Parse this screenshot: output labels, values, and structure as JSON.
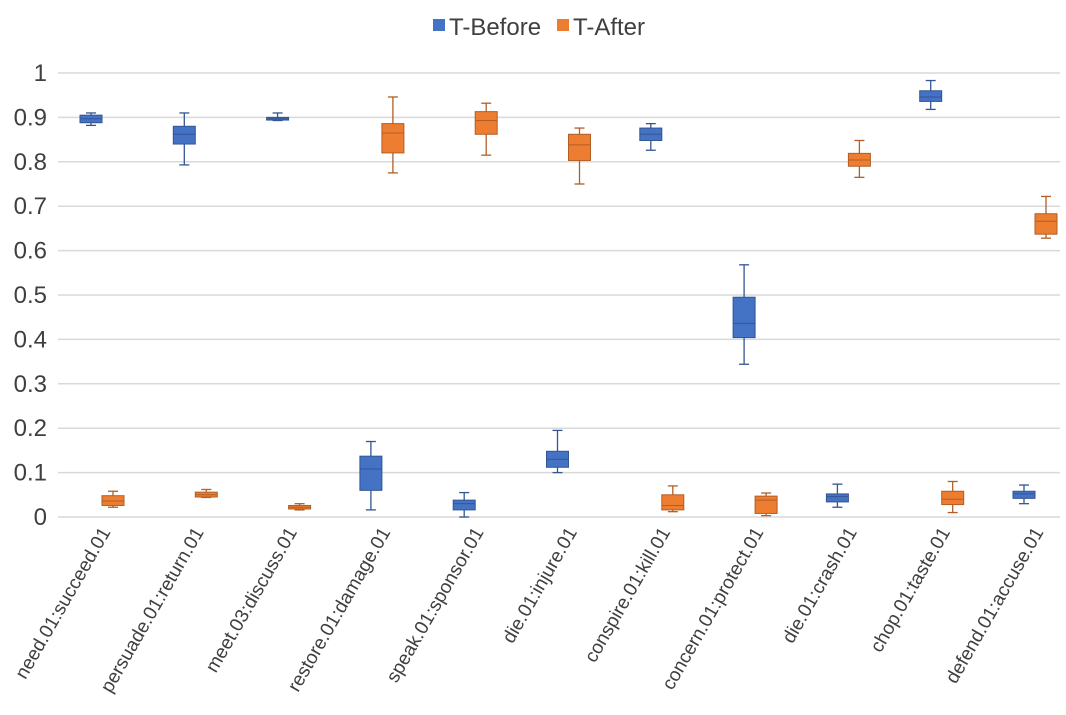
{
  "chart_data": {
    "type": "boxplot",
    "title": "",
    "xlabel": "",
    "ylabel": "",
    "ylim": [
      0,
      1
    ],
    "yticks": [
      "0",
      "0.1",
      "0.2",
      "0.3",
      "0.4",
      "0.5",
      "0.6",
      "0.7",
      "0.8",
      "0.9",
      "1"
    ],
    "grid": true,
    "legend_position": "top",
    "categories": [
      "need.01:succeed.01",
      "persuade.01:return.01",
      "meet.03:discuss.01",
      "restore.01:damage.01",
      "speak.01:sponsor.01",
      "die.01:injure.01",
      "conspire.01:kill.01",
      "concern.01:protect.01",
      "die.01:crash.01",
      "chop.01:taste.01",
      "defend.01:accuse.01"
    ],
    "series": [
      {
        "name": "T-Before",
        "color": "#4472c4",
        "boxes": [
          {
            "min": 0.882,
            "q1": 0.888,
            "median": 0.897,
            "q3": 0.905,
            "max": 0.91
          },
          {
            "min": 0.793,
            "q1": 0.84,
            "median": 0.862,
            "q3": 0.88,
            "max": 0.91
          },
          {
            "min": 0.893,
            "q1": 0.894,
            "median": 0.897,
            "q3": 0.9,
            "max": 0.91
          },
          {
            "min": 0.016,
            "q1": 0.06,
            "median": 0.108,
            "q3": 0.137,
            "max": 0.17
          },
          {
            "min": 0.0,
            "q1": 0.016,
            "median": 0.03,
            "q3": 0.038,
            "max": 0.055
          },
          {
            "min": 0.1,
            "q1": 0.112,
            "median": 0.13,
            "q3": 0.148,
            "max": 0.195
          },
          {
            "min": 0.826,
            "q1": 0.848,
            "median": 0.862,
            "q3": 0.876,
            "max": 0.886
          },
          {
            "min": 0.344,
            "q1": 0.404,
            "median": 0.436,
            "q3": 0.495,
            "max": 0.568
          },
          {
            "min": 0.022,
            "q1": 0.034,
            "median": 0.046,
            "q3": 0.052,
            "max": 0.074
          },
          {
            "min": 0.918,
            "q1": 0.936,
            "median": 0.946,
            "q3": 0.96,
            "max": 0.983
          },
          {
            "min": 0.03,
            "q1": 0.042,
            "median": 0.052,
            "q3": 0.058,
            "max": 0.072
          }
        ]
      },
      {
        "name": "T-After",
        "color": "#ed7d31",
        "boxes": [
          {
            "min": 0.022,
            "q1": 0.026,
            "median": 0.036,
            "q3": 0.048,
            "max": 0.058
          },
          {
            "min": 0.044,
            "q1": 0.045,
            "median": 0.05,
            "q3": 0.056,
            "max": 0.062
          },
          {
            "min": 0.016,
            "q1": 0.018,
            "median": 0.022,
            "q3": 0.026,
            "max": 0.03
          },
          {
            "min": 0.775,
            "q1": 0.82,
            "median": 0.865,
            "q3": 0.886,
            "max": 0.946
          },
          {
            "min": 0.815,
            "q1": 0.862,
            "median": 0.893,
            "q3": 0.913,
            "max": 0.932
          },
          {
            "min": 0.75,
            "q1": 0.803,
            "median": 0.838,
            "q3": 0.862,
            "max": 0.876
          },
          {
            "min": 0.012,
            "q1": 0.016,
            "median": 0.026,
            "q3": 0.05,
            "max": 0.07
          },
          {
            "min": 0.003,
            "q1": 0.008,
            "median": 0.038,
            "q3": 0.047,
            "max": 0.054
          },
          {
            "min": 0.765,
            "q1": 0.79,
            "median": 0.804,
            "q3": 0.819,
            "max": 0.848
          },
          {
            "min": 0.01,
            "q1": 0.028,
            "median": 0.04,
            "q3": 0.058,
            "max": 0.08
          },
          {
            "min": 0.628,
            "q1": 0.637,
            "median": 0.666,
            "q3": 0.683,
            "max": 0.722
          }
        ]
      }
    ]
  }
}
